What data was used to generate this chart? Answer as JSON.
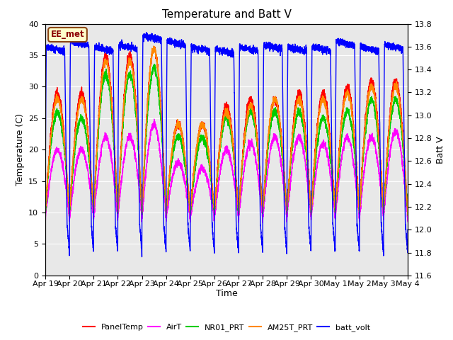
{
  "title": "Temperature and Batt V",
  "xlabel": "Time",
  "ylabel_left": "Temperature (C)",
  "ylabel_right": "Batt V",
  "ylim_left": [
    0,
    40
  ],
  "ylim_right": [
    11.6,
    13.8
  ],
  "annotation": "EE_met",
  "xtick_labels": [
    "Apr 19",
    "Apr 20",
    "Apr 21",
    "Apr 22",
    "Apr 23",
    "Apr 24",
    "Apr 25",
    "Apr 26",
    "Apr 27",
    "Apr 28",
    "Apr 29",
    "Apr 30",
    "May 1",
    "May 2",
    "May 3",
    "May 4"
  ],
  "series": {
    "PanelTemp": {
      "color": "#ff0000",
      "lw": 1.0
    },
    "AirT": {
      "color": "#ff00ff",
      "lw": 1.0
    },
    "NR01_PRT": {
      "color": "#00cc00",
      "lw": 1.0
    },
    "AM25T_PRT": {
      "color": "#ff8800",
      "lw": 1.0
    },
    "batt_volt": {
      "color": "#0000ff",
      "lw": 1.0
    }
  },
  "legend_order": [
    "PanelTemp",
    "AirT",
    "NR01_PRT",
    "AM25T_PRT",
    "batt_volt"
  ],
  "plot_bg": "#e8e8e8",
  "fig_bg": "#ffffff",
  "title_fontsize": 11,
  "axis_fontsize": 9,
  "tick_fontsize": 8,
  "n_days": 15,
  "pts_per_day": 288
}
